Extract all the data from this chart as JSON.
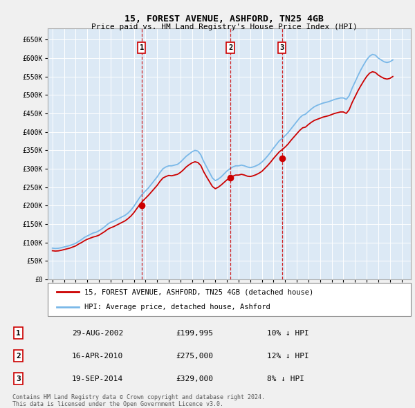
{
  "title": "15, FOREST AVENUE, ASHFORD, TN25 4GB",
  "subtitle": "Price paid vs. HM Land Registry's House Price Index (HPI)",
  "yticks": [
    0,
    50000,
    100000,
    150000,
    200000,
    250000,
    300000,
    350000,
    400000,
    450000,
    500000,
    550000,
    600000,
    650000
  ],
  "ytick_labels": [
    "£0",
    "£50K",
    "£100K",
    "£150K",
    "£200K",
    "£250K",
    "£300K",
    "£350K",
    "£400K",
    "£450K",
    "£500K",
    "£550K",
    "£600K",
    "£650K"
  ],
  "ylim": [
    0,
    680000
  ],
  "xlim_start": 1994.6,
  "xlim_end": 2025.8,
  "bg_color": "#f0f0f0",
  "plot_bg_color": "#dce9f5",
  "grid_color": "#ffffff",
  "hpi_color": "#7ab8e8",
  "price_color": "#cc0000",
  "vline_color": "#cc0000",
  "sale_points": [
    {
      "year": 2002.66,
      "price": 199995,
      "label": "1"
    },
    {
      "year": 2010.29,
      "price": 275000,
      "label": "2"
    },
    {
      "year": 2014.72,
      "price": 329000,
      "label": "3"
    }
  ],
  "legend_label_price": "15, FOREST AVENUE, ASHFORD, TN25 4GB (detached house)",
  "legend_label_hpi": "HPI: Average price, detached house, Ashford",
  "table_rows": [
    {
      "num": "1",
      "date": "29-AUG-2002",
      "price": "£199,995",
      "pct": "10% ↓ HPI"
    },
    {
      "num": "2",
      "date": "16-APR-2010",
      "price": "£275,000",
      "pct": "12% ↓ HPI"
    },
    {
      "num": "3",
      "date": "19-SEP-2014",
      "price": "£329,000",
      "pct": "8% ↓ HPI"
    }
  ],
  "footer": "Contains HM Land Registry data © Crown copyright and database right 2024.\nThis data is licensed under the Open Government Licence v3.0.",
  "hpi_data": {
    "years": [
      1995.0,
      1995.25,
      1995.5,
      1995.75,
      1996.0,
      1996.25,
      1996.5,
      1996.75,
      1997.0,
      1997.25,
      1997.5,
      1997.75,
      1998.0,
      1998.25,
      1998.5,
      1998.75,
      1999.0,
      1999.25,
      1999.5,
      1999.75,
      2000.0,
      2000.25,
      2000.5,
      2000.75,
      2001.0,
      2001.25,
      2001.5,
      2001.75,
      2002.0,
      2002.25,
      2002.5,
      2002.75,
      2003.0,
      2003.25,
      2003.5,
      2003.75,
      2004.0,
      2004.25,
      2004.5,
      2004.75,
      2005.0,
      2005.25,
      2005.5,
      2005.75,
      2006.0,
      2006.25,
      2006.5,
      2006.75,
      2007.0,
      2007.25,
      2007.5,
      2007.75,
      2008.0,
      2008.25,
      2008.5,
      2008.75,
      2009.0,
      2009.25,
      2009.5,
      2009.75,
      2010.0,
      2010.25,
      2010.5,
      2010.75,
      2011.0,
      2011.25,
      2011.5,
      2011.75,
      2012.0,
      2012.25,
      2012.5,
      2012.75,
      2013.0,
      2013.25,
      2013.5,
      2013.75,
      2014.0,
      2014.25,
      2014.5,
      2014.75,
      2015.0,
      2015.25,
      2015.5,
      2015.75,
      2016.0,
      2016.25,
      2016.5,
      2016.75,
      2017.0,
      2017.25,
      2017.5,
      2017.75,
      2018.0,
      2018.25,
      2018.5,
      2018.75,
      2019.0,
      2019.25,
      2019.5,
      2019.75,
      2020.0,
      2020.25,
      2020.5,
      2020.75,
      2021.0,
      2021.25,
      2021.5,
      2021.75,
      2022.0,
      2022.25,
      2022.5,
      2022.75,
      2023.0,
      2023.25,
      2023.5,
      2023.75,
      2024.0,
      2024.25
    ],
    "values": [
      85000,
      84000,
      84500,
      86000,
      88000,
      90000,
      92000,
      95000,
      98000,
      103000,
      108000,
      114000,
      118000,
      122000,
      126000,
      128000,
      132000,
      137000,
      143000,
      150000,
      155000,
      158000,
      162000,
      166000,
      170000,
      174000,
      180000,
      188000,
      198000,
      210000,
      222000,
      232000,
      240000,
      248000,
      258000,
      268000,
      278000,
      290000,
      300000,
      305000,
      308000,
      308000,
      310000,
      312000,
      318000,
      326000,
      334000,
      340000,
      346000,
      350000,
      348000,
      338000,
      320000,
      305000,
      290000,
      275000,
      268000,
      272000,
      278000,
      286000,
      294000,
      300000,
      305000,
      308000,
      308000,
      310000,
      308000,
      305000,
      303000,
      305000,
      308000,
      312000,
      318000,
      326000,
      335000,
      345000,
      356000,
      366000,
      376000,
      382000,
      390000,
      398000,
      408000,
      418000,
      428000,
      438000,
      445000,
      448000,
      455000,
      462000,
      468000,
      472000,
      475000,
      478000,
      480000,
      482000,
      485000,
      488000,
      490000,
      492000,
      492000,
      488000,
      498000,
      518000,
      535000,
      552000,
      568000,
      582000,
      595000,
      605000,
      610000,
      608000,
      600000,
      595000,
      590000,
      588000,
      590000,
      595000
    ]
  },
  "price_data": {
    "years": [
      1995.0,
      1995.25,
      1995.5,
      1995.75,
      1996.0,
      1996.25,
      1996.5,
      1996.75,
      1997.0,
      1997.25,
      1997.5,
      1997.75,
      1998.0,
      1998.25,
      1998.5,
      1998.75,
      1999.0,
      1999.25,
      1999.5,
      1999.75,
      2000.0,
      2000.25,
      2000.5,
      2000.75,
      2001.0,
      2001.25,
      2001.5,
      2001.75,
      2002.0,
      2002.25,
      2002.5,
      2002.75,
      2003.0,
      2003.25,
      2003.5,
      2003.75,
      2004.0,
      2004.25,
      2004.5,
      2004.75,
      2005.0,
      2005.25,
      2005.5,
      2005.75,
      2006.0,
      2006.25,
      2006.5,
      2006.75,
      2007.0,
      2007.25,
      2007.5,
      2007.75,
      2008.0,
      2008.25,
      2008.5,
      2008.75,
      2009.0,
      2009.25,
      2009.5,
      2009.75,
      2010.0,
      2010.25,
      2010.5,
      2010.75,
      2011.0,
      2011.25,
      2011.5,
      2011.75,
      2012.0,
      2012.25,
      2012.5,
      2012.75,
      2013.0,
      2013.25,
      2013.5,
      2013.75,
      2014.0,
      2014.25,
      2014.5,
      2014.75,
      2015.0,
      2015.25,
      2015.5,
      2015.75,
      2016.0,
      2016.25,
      2016.5,
      2016.75,
      2017.0,
      2017.25,
      2017.5,
      2017.75,
      2018.0,
      2018.25,
      2018.5,
      2018.75,
      2019.0,
      2019.25,
      2019.5,
      2019.75,
      2020.0,
      2020.25,
      2020.5,
      2020.75,
      2021.0,
      2021.25,
      2021.5,
      2021.75,
      2022.0,
      2022.25,
      2022.5,
      2022.75,
      2023.0,
      2023.25,
      2023.5,
      2023.75,
      2024.0,
      2024.25
    ],
    "values": [
      78000,
      77000,
      77500,
      79000,
      81000,
      83000,
      85000,
      88000,
      91000,
      96000,
      100000,
      105000,
      109000,
      112000,
      115000,
      117000,
      120000,
      125000,
      130000,
      136000,
      140000,
      143000,
      147000,
      151000,
      155000,
      159000,
      165000,
      172000,
      181000,
      192000,
      203000,
      212000,
      220000,
      228000,
      237000,
      246000,
      255000,
      266000,
      275000,
      279000,
      282000,
      281000,
      283000,
      285000,
      290000,
      297000,
      305000,
      311000,
      316000,
      319000,
      317000,
      309000,
      292000,
      278000,
      265000,
      252000,
      246000,
      250000,
      256000,
      263000,
      270000,
      276000,
      280000,
      283000,
      283000,
      285000,
      283000,
      280000,
      279000,
      281000,
      284000,
      288000,
      293000,
      301000,
      309000,
      318000,
      328000,
      337000,
      346000,
      352000,
      359000,
      367000,
      377000,
      386000,
      395000,
      404000,
      411000,
      413000,
      420000,
      426000,
      431000,
      434000,
      437000,
      440000,
      442000,
      444000,
      447000,
      450000,
      452000,
      454000,
      454000,
      450000,
      460000,
      479000,
      495000,
      511000,
      525000,
      538000,
      550000,
      559000,
      563000,
      561000,
      554000,
      549000,
      545000,
      543000,
      545000,
      550000
    ]
  }
}
